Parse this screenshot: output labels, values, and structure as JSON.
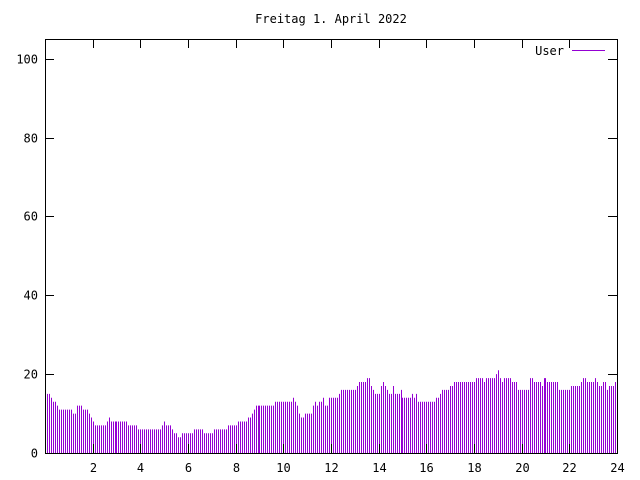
{
  "chart_data": {
    "type": "bar",
    "title": "Freitag 1. April 2022",
    "xlabel": "",
    "ylabel": "",
    "xlim": [
      0,
      24
    ],
    "ylim": [
      0,
      105
    ],
    "xticks": [
      2,
      4,
      6,
      8,
      10,
      12,
      14,
      16,
      18,
      20,
      22,
      24
    ],
    "yticks": [
      0,
      20,
      40,
      60,
      80,
      100
    ],
    "grid": false,
    "legend_position": "top-right",
    "series": [
      {
        "name": "User",
        "color": "#9400d3",
        "x_start": 0,
        "x_step": 0.0833333,
        "values": [
          16,
          15,
          15,
          14,
          13,
          13,
          12,
          11,
          11,
          11,
          11,
          11,
          11,
          11,
          10,
          10,
          12,
          12,
          12,
          11,
          11,
          11,
          10,
          9,
          8,
          7,
          7,
          7,
          7,
          7,
          7,
          8,
          9,
          8,
          8,
          8,
          8,
          8,
          8,
          8,
          8,
          8,
          7,
          7,
          7,
          7,
          7,
          6,
          6,
          6,
          6,
          6,
          6,
          6,
          6,
          6,
          6,
          6,
          6,
          7,
          8,
          7,
          7,
          7,
          6,
          5,
          5,
          4,
          4,
          5,
          5,
          5,
          5,
          5,
          5,
          6,
          6,
          6,
          6,
          6,
          5,
          5,
          5,
          5,
          5,
          6,
          6,
          6,
          6,
          6,
          6,
          6,
          7,
          7,
          7,
          7,
          7,
          8,
          8,
          8,
          8,
          8,
          9,
          9,
          10,
          11,
          12,
          12,
          12,
          12,
          12,
          12,
          12,
          12,
          12,
          12,
          13,
          13,
          13,
          13,
          13,
          13,
          13,
          13,
          13,
          14,
          13,
          12,
          10,
          9,
          9,
          10,
          10,
          10,
          10,
          12,
          13,
          12,
          13,
          13,
          14,
          12,
          12,
          14,
          14,
          14,
          14,
          14,
          15,
          16,
          16,
          16,
          16,
          16,
          16,
          16,
          16,
          17,
          18,
          18,
          18,
          18,
          19,
          19,
          17,
          16,
          15,
          15,
          15,
          17,
          18,
          17,
          16,
          15,
          15,
          17,
          15,
          15,
          15,
          16,
          14,
          14,
          14,
          14,
          14,
          15,
          14,
          15,
          13,
          13,
          13,
          13,
          13,
          13,
          13,
          13,
          13,
          14,
          14,
          15,
          16,
          16,
          16,
          16,
          17,
          17,
          18,
          18,
          18,
          18,
          18,
          18,
          18,
          18,
          18,
          18,
          18,
          19,
          19,
          19,
          19,
          18,
          19,
          19,
          19,
          19,
          19,
          20,
          21,
          19,
          18,
          19,
          19,
          19,
          19,
          18,
          18,
          18,
          16,
          16,
          16,
          16,
          16,
          16,
          19,
          19,
          18,
          18,
          18,
          18,
          17,
          19,
          19,
          18,
          18,
          18,
          18,
          18,
          18,
          16,
          16,
          16,
          16,
          16,
          16,
          17,
          17,
          17,
          17,
          17,
          18,
          19,
          19,
          18,
          18,
          18,
          18,
          19,
          18,
          17,
          17,
          18,
          18,
          16,
          17,
          17,
          17,
          18
        ]
      }
    ]
  }
}
